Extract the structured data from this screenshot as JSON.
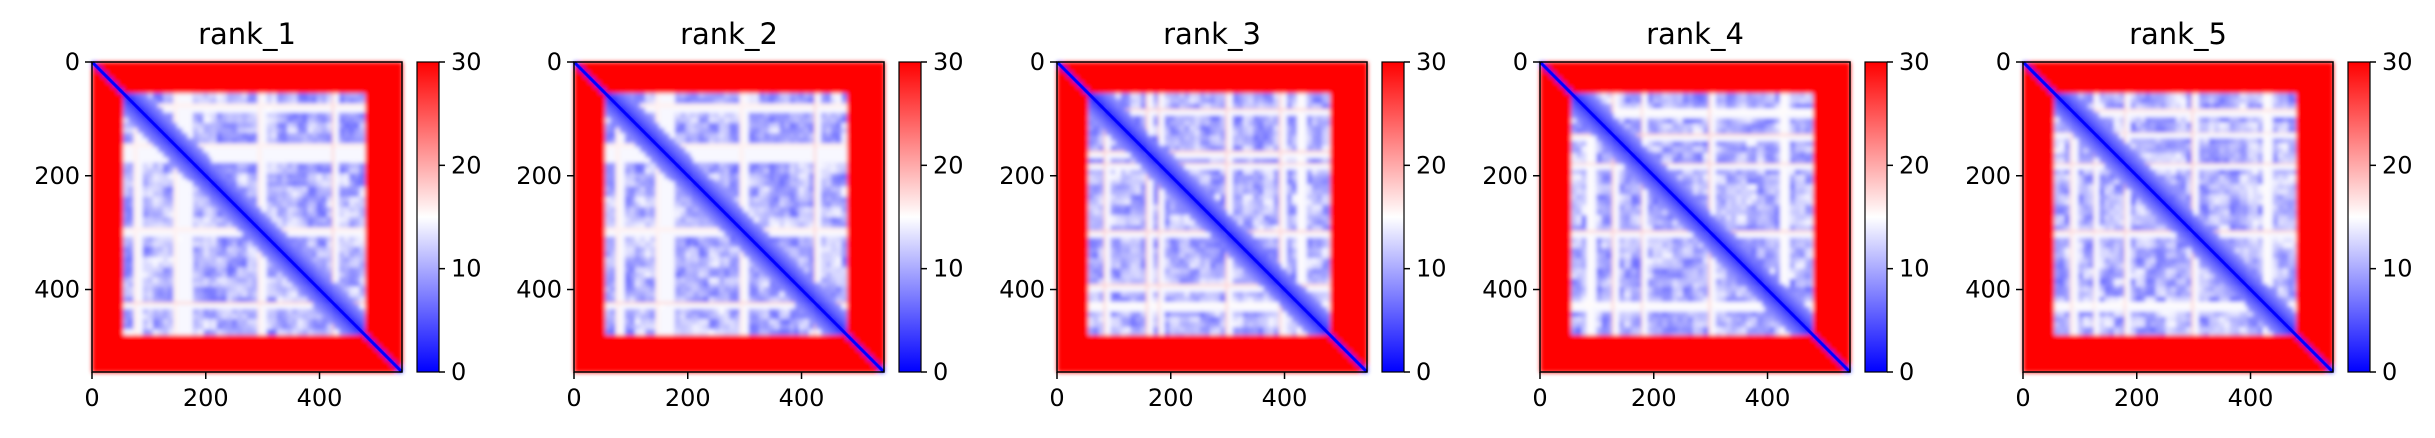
{
  "chart_data": [
    {
      "type": "heatmap",
      "title": "rank_1",
      "xlabel": "",
      "ylabel": "",
      "xlim": [
        0,
        545
      ],
      "ylim": [
        545,
        0
      ],
      "xticks": [
        0,
        200,
        400
      ],
      "yticks": [
        0,
        200,
        400
      ],
      "colorbar": {
        "min": 0,
        "max": 30,
        "ticks": [
          0,
          10,
          20,
          30
        ],
        "colormap": "bwr"
      },
      "size": 545,
      "domain_boundaries": [
        55,
        80,
        150,
        168,
        178,
        210,
        298,
        395,
        425,
        480
      ],
      "blocks": [
        [
          55,
          480
        ]
      ],
      "white_lines": [
        80,
        150,
        168,
        298,
        425
      ]
    },
    {
      "type": "heatmap",
      "title": "rank_2",
      "xlabel": "",
      "ylabel": "",
      "xlim": [
        0,
        545
      ],
      "ylim": [
        545,
        0
      ],
      "xticks": [
        0,
        200,
        400
      ],
      "yticks": [
        0,
        200,
        400
      ],
      "colorbar": {
        "min": 0,
        "max": 30,
        "ticks": [
          0,
          10,
          20,
          30
        ],
        "colormap": "bwr"
      },
      "size": 545,
      "domain_boundaries": [
        55,
        80,
        150,
        168,
        178,
        210,
        298,
        395,
        425,
        480
      ],
      "blocks": [
        [
          55,
          480
        ]
      ],
      "white_lines": [
        80,
        150,
        168,
        298,
        425
      ]
    },
    {
      "type": "heatmap",
      "title": "rank_3",
      "xlabel": "",
      "ylabel": "",
      "xlim": [
        0,
        545
      ],
      "ylim": [
        545,
        0
      ],
      "xticks": [
        0,
        200,
        400
      ],
      "yticks": [
        0,
        200,
        400
      ],
      "colorbar": {
        "min": 0,
        "max": 30,
        "ticks": [
          0,
          10,
          20,
          30
        ],
        "colormap": "bwr"
      },
      "size": 545,
      "domain_boundaries": [
        55,
        85,
        120,
        160,
        180,
        215,
        300,
        395,
        430,
        480
      ],
      "blocks": [
        [
          55,
          480
        ]
      ],
      "white_lines": [
        85,
        160,
        180,
        300,
        395,
        430
      ]
    },
    {
      "type": "heatmap",
      "title": "rank_4",
      "xlabel": "",
      "ylabel": "",
      "xlim": [
        0,
        545
      ],
      "ylim": [
        545,
        0
      ],
      "xticks": [
        0,
        200,
        400
      ],
      "yticks": [
        0,
        200,
        400
      ],
      "colorbar": {
        "min": 0,
        "max": 30,
        "ticks": [
          0,
          10,
          20,
          30
        ],
        "colormap": "bwr"
      },
      "size": 545,
      "domain_boundaries": [
        55,
        90,
        130,
        160,
        180,
        215,
        300,
        395,
        430,
        480
      ],
      "blocks": [
        [
          55,
          480
        ]
      ],
      "white_lines": [
        90,
        130,
        180,
        300,
        430
      ]
    },
    {
      "type": "heatmap",
      "title": "rank_5",
      "xlabel": "",
      "ylabel": "",
      "xlim": [
        0,
        545
      ],
      "ylim": [
        545,
        0
      ],
      "xticks": [
        0,
        200,
        400
      ],
      "yticks": [
        0,
        200,
        400
      ],
      "colorbar": {
        "min": 0,
        "max": 30,
        "ticks": [
          0,
          10,
          20,
          30
        ],
        "colormap": "bwr"
      },
      "size": 545,
      "domain_boundaries": [
        55,
        88,
        125,
        160,
        180,
        215,
        300,
        395,
        430,
        480
      ],
      "blocks": [
        [
          55,
          480
        ]
      ],
      "white_lines": [
        88,
        125,
        180,
        300,
        430
      ]
    }
  ]
}
